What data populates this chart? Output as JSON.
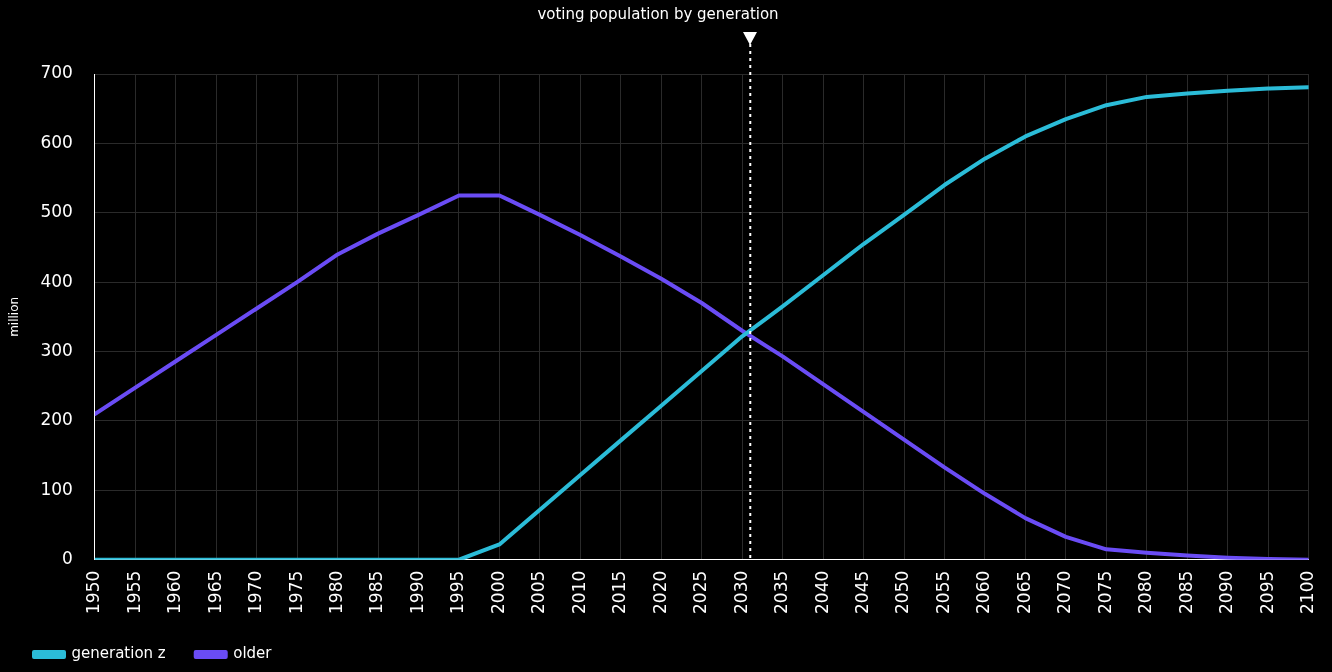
{
  "chart_data": {
    "type": "line",
    "title": "voting population by generation",
    "ylabel": "million",
    "x": [
      1950,
      1955,
      1960,
      1965,
      1970,
      1975,
      1980,
      1985,
      1990,
      1995,
      2000,
      2005,
      2010,
      2015,
      2020,
      2025,
      2030,
      2035,
      2040,
      2045,
      2050,
      2055,
      2060,
      2065,
      2070,
      2075,
      2080,
      2085,
      2090,
      2095,
      2100
    ],
    "series": [
      {
        "name": "generation z",
        "color": "#2bbcd8",
        "values": [
          0,
          0,
          0,
          0,
          0,
          0,
          0,
          0,
          0,
          0,
          22,
          72,
          122,
          172,
          222,
          272,
          322,
          365,
          410,
          455,
          497,
          540,
          578,
          610,
          635,
          655,
          667,
          672,
          676,
          679,
          681
        ]
      },
      {
        "name": "older",
        "color": "#6a4cf5",
        "values": [
          210,
          248,
          286,
          324,
          362,
          400,
          440,
          470,
          497,
          525,
          525,
          497,
          468,
          437,
          405,
          370,
          330,
          293,
          253,
          213,
          173,
          133,
          95,
          60,
          33,
          15,
          10,
          6,
          3,
          1,
          0
        ]
      }
    ],
    "xlim": [
      1950,
      2100
    ],
    "xticks": [
      1950,
      1955,
      1960,
      1965,
      1970,
      1975,
      1980,
      1985,
      1990,
      1995,
      2000,
      2005,
      2010,
      2015,
      2020,
      2025,
      2030,
      2035,
      2040,
      2045,
      2050,
      2055,
      2060,
      2065,
      2070,
      2075,
      2080,
      2085,
      2090,
      2095,
      2100
    ],
    "ylim": [
      0,
      700
    ],
    "yticks": [
      0,
      100,
      200,
      300,
      400,
      500,
      600,
      700
    ],
    "ref_lines": [
      {
        "axis": "x",
        "value": 2031,
        "color": "#ffffff",
        "line_style": "dotted"
      }
    ],
    "grid": true,
    "legend": "bottom left",
    "marker": "none",
    "line_style": "solid"
  }
}
